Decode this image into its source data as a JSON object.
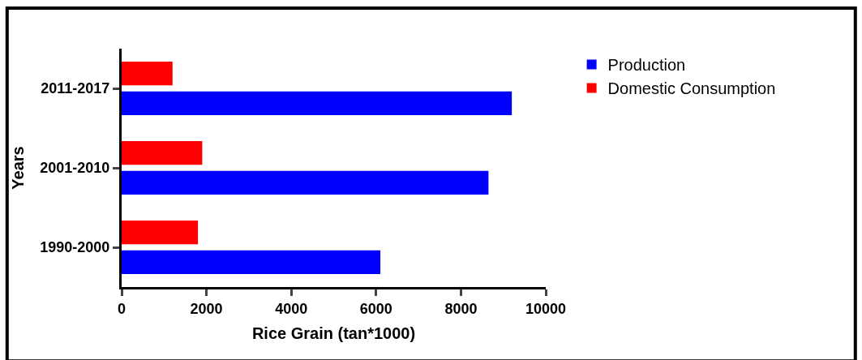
{
  "chart_data": {
    "type": "bar",
    "orientation": "horizontal",
    "xlabel": "Rice Grain (tan*1000)",
    "ylabel": "Years",
    "categories": [
      "2011-2017",
      "2001-2010",
      "1990-2000"
    ],
    "series": [
      {
        "name": "Production",
        "color": "#0000ff",
        "values": [
          9200,
          8650,
          6100
        ]
      },
      {
        "name": "Domestic Consumption",
        "color": "#ff0000",
        "values": [
          1200,
          1900,
          1800
        ]
      }
    ],
    "xlim": [
      0,
      10000
    ],
    "xticks": [
      0,
      2000,
      4000,
      6000,
      8000,
      10000
    ],
    "legend": "top right"
  }
}
